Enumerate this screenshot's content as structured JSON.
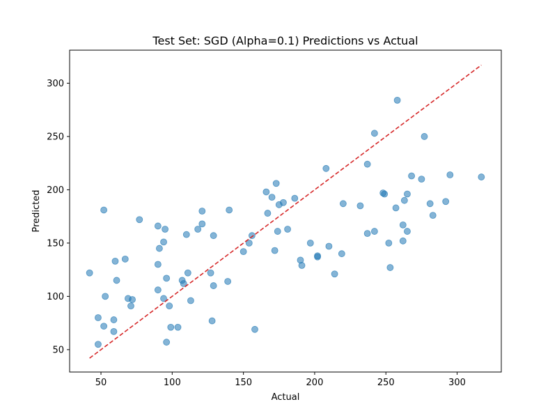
{
  "chart_data": {
    "type": "scatter",
    "title": "Test Set: SGD (Alpha=0.1) Predictions vs Actual",
    "xlabel": "Actual",
    "ylabel": "Predicted",
    "xlim": [
      28,
      331
    ],
    "ylim": [
      29,
      331
    ],
    "xticks": [
      50,
      100,
      150,
      200,
      250,
      300
    ],
    "yticks": [
      50,
      100,
      150,
      200,
      250,
      300
    ],
    "grid": false,
    "point_color": "#1f77b4",
    "point_alpha": 0.55,
    "reference_line": {
      "x": [
        42,
        317
      ],
      "y": [
        42,
        317
      ],
      "color": "#d62728",
      "style": "dashed"
    },
    "points": [
      [
        42,
        122
      ],
      [
        48,
        80
      ],
      [
        48,
        55
      ],
      [
        52,
        181
      ],
      [
        52,
        72
      ],
      [
        53,
        100
      ],
      [
        59,
        78
      ],
      [
        59,
        67
      ],
      [
        60,
        133
      ],
      [
        61,
        115
      ],
      [
        67,
        135
      ],
      [
        69,
        98
      ],
      [
        71,
        91
      ],
      [
        72,
        97
      ],
      [
        77,
        172
      ],
      [
        90,
        166
      ],
      [
        90,
        130
      ],
      [
        90,
        106
      ],
      [
        91,
        145
      ],
      [
        94,
        151
      ],
      [
        94,
        98
      ],
      [
        95,
        163
      ],
      [
        96,
        117
      ],
      [
        96,
        57
      ],
      [
        98,
        91
      ],
      [
        99,
        71
      ],
      [
        104,
        71
      ],
      [
        107,
        115
      ],
      [
        108,
        112
      ],
      [
        110,
        158
      ],
      [
        111,
        122
      ],
      [
        113,
        96
      ],
      [
        118,
        163
      ],
      [
        121,
        180
      ],
      [
        121,
        168
      ],
      [
        127,
        122
      ],
      [
        128,
        77
      ],
      [
        129,
        110
      ],
      [
        129,
        157
      ],
      [
        139,
        114
      ],
      [
        140,
        181
      ],
      [
        150,
        142
      ],
      [
        154,
        150
      ],
      [
        156,
        157
      ],
      [
        158,
        69
      ],
      [
        166,
        198
      ],
      [
        167,
        178
      ],
      [
        170,
        193
      ],
      [
        172,
        143
      ],
      [
        173,
        206
      ],
      [
        174,
        161
      ],
      [
        175,
        186
      ],
      [
        178,
        188
      ],
      [
        181,
        163
      ],
      [
        186,
        192
      ],
      [
        190,
        134
      ],
      [
        191,
        129
      ],
      [
        197,
        150
      ],
      [
        202,
        137
      ],
      [
        202,
        138
      ],
      [
        208,
        220
      ],
      [
        210,
        147
      ],
      [
        214,
        121
      ],
      [
        219,
        140
      ],
      [
        220,
        187
      ],
      [
        232,
        185
      ],
      [
        237,
        159
      ],
      [
        237,
        224
      ],
      [
        242,
        161
      ],
      [
        242,
        253
      ],
      [
        248,
        197
      ],
      [
        249,
        196
      ],
      [
        252,
        150
      ],
      [
        253,
        127
      ],
      [
        257,
        183
      ],
      [
        258,
        284
      ],
      [
        262,
        152
      ],
      [
        262,
        167
      ],
      [
        263,
        190
      ],
      [
        265,
        161
      ],
      [
        265,
        196
      ],
      [
        268,
        213
      ],
      [
        275,
        210
      ],
      [
        277,
        250
      ],
      [
        281,
        187
      ],
      [
        283,
        176
      ],
      [
        292,
        189
      ],
      [
        295,
        214
      ],
      [
        317,
        212
      ]
    ]
  }
}
